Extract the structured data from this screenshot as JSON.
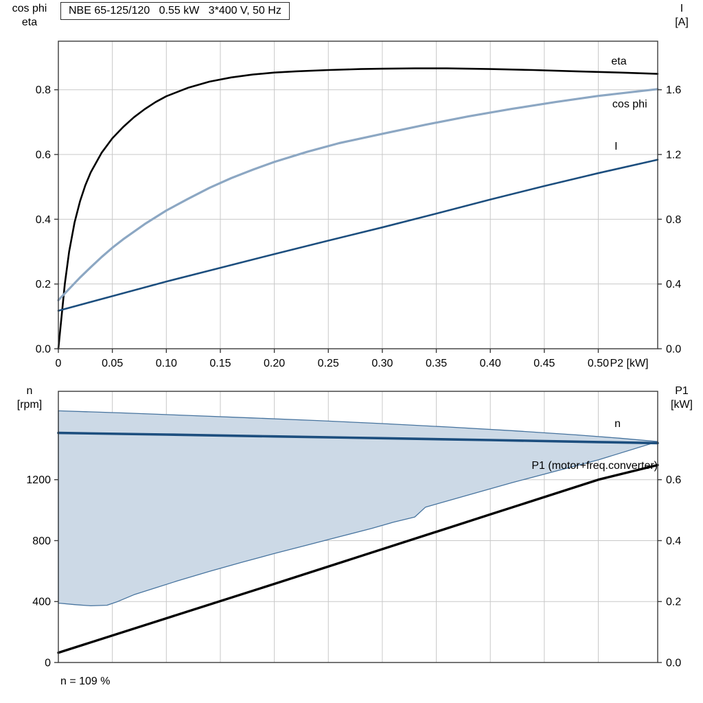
{
  "chart_data": [
    {
      "type": "line",
      "name": "motor-electrical-curves",
      "title": "NBE 65-125/120   0.55 kW   3*400 V, 50 Hz",
      "colors": {
        "grid": "#c8c8c8",
        "frame": "#3a3a3a"
      },
      "x_axis": {
        "label": "P2 [kW]",
        "min": 0,
        "max": 0.555,
        "ticks": [
          0,
          0.05,
          0.1,
          0.15,
          0.2,
          0.25,
          0.3,
          0.35,
          0.4,
          0.45,
          0.5
        ],
        "tick_labels": [
          "0",
          "0.05",
          "0.10",
          "0.15",
          "0.20",
          "0.25",
          "0.30",
          "0.35",
          "0.40",
          "0.45",
          "0.50"
        ]
      },
      "left_axis": {
        "label_lines": [
          "cos phi",
          "eta"
        ],
        "min": 0,
        "max": 0.95,
        "ticks": [
          0,
          0.2,
          0.4,
          0.6,
          0.8
        ],
        "tick_labels": [
          "0.0",
          "0.2",
          "0.4",
          "0.6",
          "0.8"
        ]
      },
      "right_axis": {
        "label_lines": [
          "I",
          "[A]"
        ],
        "min": 0,
        "max": 1.9,
        "ticks": [
          0,
          0.4,
          0.8,
          1.2,
          1.6
        ],
        "tick_labels": [
          "0.0",
          "0.4",
          "0.8",
          "1.2",
          "1.6"
        ]
      },
      "series": [
        {
          "name": "eta",
          "label": "eta",
          "axis": "left",
          "color": "#000000",
          "label_color": "#000000",
          "width": 2.6,
          "label_pos": [
            0.512,
            0.878
          ],
          "points": [
            [
              0,
              0
            ],
            [
              0.003,
              0.1
            ],
            [
              0.006,
              0.2
            ],
            [
              0.01,
              0.3
            ],
            [
              0.015,
              0.39
            ],
            [
              0.02,
              0.455
            ],
            [
              0.025,
              0.505
            ],
            [
              0.03,
              0.545
            ],
            [
              0.04,
              0.605
            ],
            [
              0.05,
              0.65
            ],
            [
              0.06,
              0.685
            ],
            [
              0.07,
              0.715
            ],
            [
              0.08,
              0.74
            ],
            [
              0.09,
              0.762
            ],
            [
              0.1,
              0.78
            ],
            [
              0.12,
              0.806
            ],
            [
              0.14,
              0.825
            ],
            [
              0.16,
              0.838
            ],
            [
              0.18,
              0.847
            ],
            [
              0.2,
              0.853
            ],
            [
              0.22,
              0.857
            ],
            [
              0.25,
              0.861
            ],
            [
              0.28,
              0.864
            ],
            [
              0.3,
              0.865
            ],
            [
              0.33,
              0.866
            ],
            [
              0.36,
              0.866
            ],
            [
              0.4,
              0.864
            ],
            [
              0.44,
              0.861
            ],
            [
              0.48,
              0.857
            ],
            [
              0.52,
              0.853
            ],
            [
              0.555,
              0.849
            ]
          ]
        },
        {
          "name": "cos-phi",
          "label": "cos phi",
          "axis": "left",
          "color": "#8ca7c3",
          "label_color": "#7fa0c0",
          "width": 3.2,
          "label_pos": [
            0.513,
            0.745
          ],
          "points": [
            [
              0,
              0.15
            ],
            [
              0.01,
              0.185
            ],
            [
              0.02,
              0.22
            ],
            [
              0.03,
              0.252
            ],
            [
              0.04,
              0.283
            ],
            [
              0.05,
              0.312
            ],
            [
              0.06,
              0.338
            ],
            [
              0.08,
              0.385
            ],
            [
              0.1,
              0.427
            ],
            [
              0.12,
              0.463
            ],
            [
              0.14,
              0.497
            ],
            [
              0.16,
              0.527
            ],
            [
              0.18,
              0.553
            ],
            [
              0.2,
              0.577
            ],
            [
              0.23,
              0.608
            ],
            [
              0.26,
              0.635
            ],
            [
              0.3,
              0.664
            ],
            [
              0.34,
              0.692
            ],
            [
              0.38,
              0.718
            ],
            [
              0.42,
              0.741
            ],
            [
              0.46,
              0.762
            ],
            [
              0.5,
              0.781
            ],
            [
              0.555,
              0.802
            ]
          ]
        },
        {
          "name": "current-I",
          "label": "I",
          "axis": "right",
          "color": "#1c4e7e",
          "label_color": "#1c4e7e",
          "width": 2.6,
          "label_pos": [
            0.515,
            1.23
          ],
          "points": [
            [
              0,
              0.235
            ],
            [
              0.05,
              0.325
            ],
            [
              0.1,
              0.415
            ],
            [
              0.15,
              0.5
            ],
            [
              0.2,
              0.585
            ],
            [
              0.25,
              0.668
            ],
            [
              0.3,
              0.75
            ],
            [
              0.35,
              0.835
            ],
            [
              0.4,
              0.922
            ],
            [
              0.45,
              1.005
            ],
            [
              0.5,
              1.085
            ],
            [
              0.555,
              1.168
            ]
          ]
        }
      ]
    },
    {
      "type": "line",
      "name": "speed-and-input-power-curves",
      "footnote": "n = 109 %",
      "colors": {
        "grid": "#c8c8c8",
        "frame": "#3a3a3a"
      },
      "x_axis": {
        "label": "",
        "min": 0,
        "max": 0.555,
        "ticks": [
          0,
          0.05,
          0.1,
          0.15,
          0.2,
          0.25,
          0.3,
          0.35,
          0.4,
          0.45,
          0.5
        ],
        "tick_labels": []
      },
      "left_axis": {
        "label_lines": [
          "n",
          "[rpm]"
        ],
        "min": 0,
        "max": 1780,
        "ticks": [
          0,
          400,
          800,
          1200
        ],
        "tick_labels": [
          "0",
          "400",
          "800",
          "1200"
        ]
      },
      "right_axis": {
        "label_lines": [
          "P1",
          "[kW]"
        ],
        "min": 0,
        "max": 0.89,
        "ticks": [
          0,
          0.2,
          0.4,
          0.6
        ],
        "tick_labels": [
          "0.0",
          "0.2",
          "0.4",
          "0.6"
        ]
      },
      "areas": [
        {
          "name": "speed-operating-envelope",
          "axis": "left",
          "fill": "#ccd9e6",
          "stroke": "#46739e",
          "points": [
            [
              0,
              1652
            ],
            [
              0.06,
              1638
            ],
            [
              0.12,
              1622
            ],
            [
              0.18,
              1605
            ],
            [
              0.24,
              1588
            ],
            [
              0.3,
              1568
            ],
            [
              0.36,
              1546
            ],
            [
              0.42,
              1522
            ],
            [
              0.48,
              1494
            ],
            [
              0.52,
              1472
            ],
            [
              0.555,
              1450
            ],
            [
              0.5,
              1330
            ],
            [
              0.46,
              1255
            ],
            [
              0.42,
              1180
            ],
            [
              0.38,
              1100
            ],
            [
              0.35,
              1040
            ],
            [
              0.34,
              1020
            ],
            [
              0.33,
              955
            ],
            [
              0.31,
              920
            ],
            [
              0.29,
              880
            ],
            [
              0.26,
              825
            ],
            [
              0.23,
              770
            ],
            [
              0.2,
              715
            ],
            [
              0.17,
              658
            ],
            [
              0.14,
              598
            ],
            [
              0.11,
              535
            ],
            [
              0.09,
              490
            ],
            [
              0.07,
              445
            ],
            [
              0.055,
              400
            ],
            [
              0.045,
              376
            ],
            [
              0.03,
              372
            ],
            [
              0.015,
              380
            ],
            [
              0,
              390
            ]
          ]
        }
      ],
      "series": [
        {
          "name": "speed-n",
          "label": "n",
          "axis": "left",
          "color": "#1c4e7e",
          "label_color": "#1c4e7e",
          "width": 3.6,
          "label_pos": [
            0.515,
            1545
          ],
          "points": [
            [
              0,
              1507
            ],
            [
              0.1,
              1496
            ],
            [
              0.2,
              1484
            ],
            [
              0.3,
              1472
            ],
            [
              0.4,
              1460
            ],
            [
              0.5,
              1447
            ],
            [
              0.555,
              1440
            ]
          ]
        },
        {
          "name": "input-power-P1",
          "label": "P1 (motor+freq.converter)",
          "axis": "right",
          "color": "#000000",
          "label_color": "#000000",
          "width": 3.4,
          "label_pos": [
            0.555,
            0.635
          ],
          "label_anchor": "end",
          "points": [
            [
              0,
              0.032
            ],
            [
              0.1,
              0.145
            ],
            [
              0.2,
              0.258
            ],
            [
              0.3,
              0.372
            ],
            [
              0.4,
              0.486
            ],
            [
              0.5,
              0.6
            ],
            [
              0.555,
              0.648
            ]
          ]
        }
      ]
    }
  ]
}
